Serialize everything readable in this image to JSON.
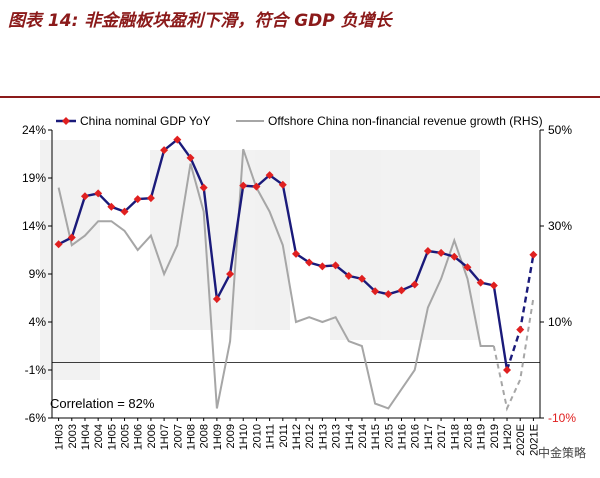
{
  "title": "图表 14: 非金融板块盈利下滑，符合 GDP 负增长",
  "annotation": "Correlation = 82%",
  "watermark": "中金策略",
  "colors": {
    "title": "#8b1a1a",
    "gdp": "#1a1a7a",
    "gdp_marker": "#e02020",
    "revenue": "#a6a6a6",
    "negative_tick": "#e02020"
  },
  "chart_data": {
    "type": "line",
    "x": [
      "1H03",
      "2003",
      "1H04",
      "2004",
      "1H05",
      "2005",
      "1H06",
      "2006",
      "1H07",
      "2007",
      "1H08",
      "2008",
      "1H09",
      "2009",
      "1H10",
      "2010",
      "1H11",
      "2011",
      "1H12",
      "2012",
      "1H13",
      "2013",
      "1H14",
      "2014",
      "1H15",
      "2015",
      "1H16",
      "2016",
      "1H17",
      "2017",
      "1H18",
      "2018",
      "1H19",
      "2019",
      "1H20",
      "2020E",
      "2021E"
    ],
    "ylim_left": [
      -6,
      24
    ],
    "ylim_right": [
      -10,
      50
    ],
    "yticks_left": [
      "24%",
      "19%",
      "14%",
      "9%",
      "4%",
      "-1%",
      "-6%"
    ],
    "yticks_right": [
      "50%",
      "30%",
      "10%",
      "-10%"
    ],
    "grid": false,
    "legend_position": "top",
    "series": [
      {
        "name": "China nominal GDP YoY",
        "axis": "left",
        "values": [
          12.1,
          12.8,
          17.1,
          17.4,
          16.0,
          15.5,
          16.8,
          16.9,
          21.9,
          23.0,
          21.1,
          18.0,
          6.4,
          9.0,
          18.2,
          18.1,
          19.3,
          18.3,
          11.1,
          10.2,
          9.8,
          9.9,
          8.8,
          8.5,
          7.2,
          6.9,
          7.3,
          7.9,
          11.4,
          11.2,
          10.8,
          9.7,
          8.1,
          7.8,
          -1.0,
          3.2,
          11.0
        ],
        "forecast_from_index": 34
      },
      {
        "name": "Offshore China non-financial revenue growth (RHS)",
        "axis": "right",
        "values": [
          38,
          26,
          28,
          31,
          31,
          29,
          25,
          28,
          20,
          26,
          43,
          33,
          -8,
          6,
          46,
          38,
          33,
          26,
          10,
          11,
          10,
          11,
          6,
          5,
          -7,
          -8,
          -4,
          0,
          13,
          19,
          27,
          19,
          5,
          5,
          -8,
          -2,
          15
        ],
        "forecast_from_index": 34
      }
    ]
  }
}
